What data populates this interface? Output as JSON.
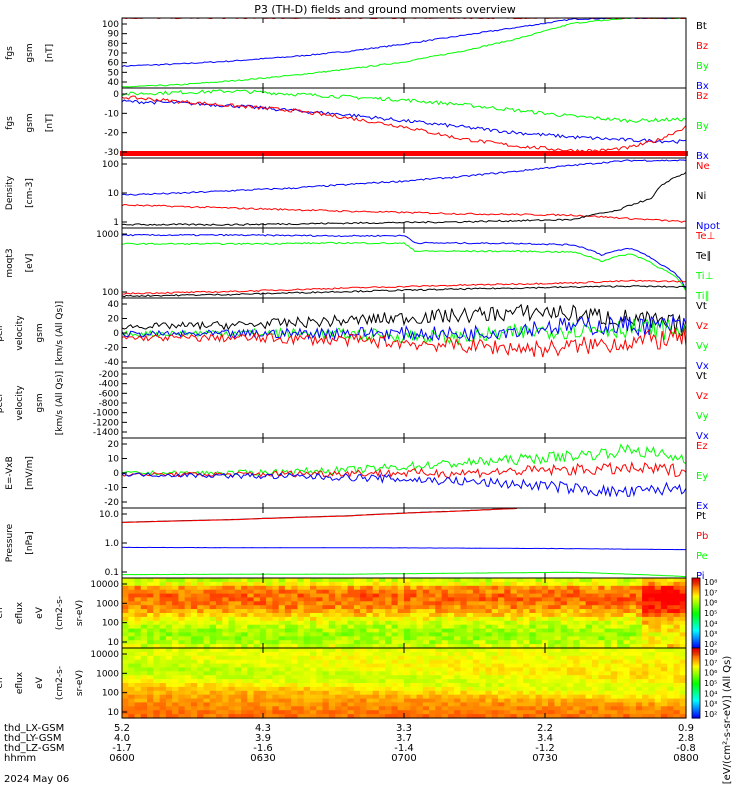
{
  "colors": {
    "black": "#000000",
    "red": "#ff0000",
    "green": "#00ff00",
    "blue": "#0000ff"
  },
  "chart_data": {
    "type": "line",
    "title": "P3 (TH-D) fields and ground moments overview",
    "x_ticks": [
      "0600",
      "0630",
      "0700",
      "0730",
      "0800"
    ],
    "x_range": [
      "0600",
      "0800"
    ],
    "ephemeris": [
      {
        "label": "thd_LX-GSM",
        "values": [
          "5.2",
          "4.3",
          "3.3",
          "2.2",
          "0.9"
        ]
      },
      {
        "label": "thd_LY-GSM",
        "values": [
          "4.0",
          "3.9",
          "3.7",
          "3.4",
          "2.8"
        ]
      },
      {
        "label": "thd_LZ-GSM",
        "values": [
          "-1.7",
          "-1.6",
          "-1.4",
          "-1.2",
          "-0.8"
        ]
      },
      {
        "label": "hhmm",
        "values": [
          "0600",
          "0630",
          "0700",
          "0730",
          "0800"
        ]
      }
    ],
    "date_label": "2024 May 06",
    "panels": [
      {
        "ylabel": [
          "thd",
          "fgs",
          "gsm",
          "[nT]"
        ],
        "yticks": [
          "100",
          "90",
          "80",
          "70",
          "60",
          "50",
          "40"
        ],
        "legend": [
          {
            "name": "Bt",
            "color": "black"
          },
          {
            "name": "Bz",
            "color": "red"
          },
          {
            "name": "By",
            "color": "green"
          },
          {
            "name": "Bx",
            "color": "blue"
          }
        ],
        "series": [
          {
            "name": "Bx",
            "color": "blue",
            "x": [
              0,
              0.1,
              0.2,
              0.3,
              0.4,
              0.5,
              0.6,
              0.7,
              0.8,
              0.9,
              1.0
            ],
            "y": [
              54,
              56,
              59,
              63,
              68,
              75,
              83,
              91,
              99,
              100,
              100
            ]
          },
          {
            "name": "By",
            "color": "green",
            "x": [
              0,
              0.1,
              0.2,
              0.3,
              0.4,
              0.5,
              0.6,
              0.7,
              0.8,
              0.9,
              1.0
            ],
            "y": [
              34,
              36,
              40,
              45,
              51,
              58,
              68,
              80,
              95,
              100,
              100
            ]
          },
          {
            "name": "Bz",
            "color": "red",
            "x": [
              0,
              0.05,
              1.0
            ],
            "y": [
              100,
              100,
              100
            ]
          }
        ]
      },
      {
        "ylabel": [
          "thd",
          "fgs",
          "gsm",
          "[nT]"
        ],
        "yticks": [
          "0",
          "-10",
          "-20",
          "-30"
        ],
        "legend": [
          {
            "name": "Bz",
            "color": "red"
          },
          {
            "name": "By",
            "color": "green"
          },
          {
            "name": "Bx",
            "color": "blue"
          }
        ],
        "series": [
          {
            "name": "By",
            "color": "green",
            "x": [
              0,
              0.1,
              0.2,
              0.3,
              0.4,
              0.5,
              0.6,
              0.7,
              0.8,
              0.9,
              1.0
            ],
            "y": [
              8,
              9,
              10,
              8,
              6,
              4,
              1,
              -3,
              -7,
              -10,
              -9
            ]
          },
          {
            "name": "Bx",
            "color": "blue",
            "x": [
              0,
              0.1,
              0.2,
              0.3,
              0.4,
              0.5,
              0.6,
              0.7,
              0.8,
              0.9,
              1.0
            ],
            "y": [
              3,
              2,
              0,
              -3,
              -6,
              -10,
              -14,
              -18,
              -21,
              -23,
              -24
            ]
          },
          {
            "name": "Bz",
            "color": "red",
            "x": [
              0,
              0.1,
              0.2,
              0.3,
              0.4,
              0.5,
              0.6,
              0.7,
              0.8,
              0.85,
              0.9,
              0.95,
              1.0
            ],
            "y": [
              6,
              3,
              0,
              -3,
              -8,
              -14,
              -22,
              -27,
              -30,
              -30,
              -28,
              -23,
              -14
            ]
          }
        ]
      },
      {
        "ylabel": [
          "Density",
          "[cm-3]"
        ],
        "yticks": [
          "100",
          "10",
          "1"
        ],
        "legend": [
          {
            "name": "Ne",
            "color": "red"
          },
          {
            "name": "Ni",
            "color": "black"
          },
          {
            "name": "Npot",
            "color": "blue"
          }
        ],
        "series": [
          {
            "name": "Npot",
            "color": "blue",
            "x": [
              0,
              0.1,
              0.2,
              0.3,
              0.4,
              0.5,
              0.6,
              0.7,
              0.8,
              0.9,
              1.0
            ],
            "y": [
              8,
              9,
              11,
              13,
              17,
              22,
              30,
              45,
              70,
              100,
              100
            ]
          },
          {
            "name": "Ne",
            "color": "red",
            "x": [
              0,
              0.2,
              0.4,
              0.6,
              0.8,
              0.9,
              1.0
            ],
            "y": [
              3.8,
              3,
              2.4,
              2,
              1.8,
              1.4,
              1.1
            ]
          },
          {
            "name": "Ni",
            "color": "black",
            "x": [
              0,
              0.2,
              0.4,
              0.6,
              0.8,
              0.88,
              0.94,
              1.0
            ],
            "y": [
              0.9,
              0.9,
              1,
              1.1,
              1.3,
              2.5,
              6,
              40
            ]
          }
        ]
      },
      {
        "ylabel": [
          "moqt3",
          "[eV]"
        ],
        "yticks": [
          "1000",
          "100"
        ],
        "legend": [
          {
            "name": "Te⊥",
            "color": "red"
          },
          {
            "name": "Te∥",
            "color": "black"
          },
          {
            "name": "Ti⊥",
            "color": "green"
          },
          {
            "name": "Ti∥",
            "color": "green"
          }
        ],
        "series": [
          {
            "name": "Ti⊥",
            "color": "blue",
            "x": [
              0,
              0.2,
              0.4,
              0.5,
              0.52,
              0.7,
              0.8,
              0.85,
              0.9,
              0.95,
              1.0
            ],
            "y": [
              5500,
              5500,
              5200,
              5300,
              3200,
              3100,
              2800,
              1400,
              2200,
              800,
              120
            ]
          },
          {
            "name": "Ti∥",
            "color": "green",
            "x": [
              0,
              0.2,
              0.4,
              0.5,
              0.52,
              0.7,
              0.8,
              0.85,
              0.9,
              0.95,
              1.0
            ],
            "y": [
              3000,
              3000,
              3200,
              3100,
              1800,
              1800,
              1700,
              900,
              1500,
              600,
              110
            ]
          },
          {
            "name": "Te⊥",
            "color": "red",
            "x": [
              0,
              0.2,
              0.4,
              0.6,
              0.8,
              0.9,
              1.0
            ],
            "y": [
              95,
              110,
              140,
              170,
              200,
              230,
              220
            ]
          },
          {
            "name": "Te∥",
            "color": "black",
            "x": [
              0,
              0.2,
              0.4,
              0.6,
              0.8,
              0.9,
              1.0
            ],
            "y": [
              80,
              90,
              110,
              130,
              150,
              160,
              150
            ]
          }
        ]
      },
      {
        "ylabel": [
          "thd",
          "peir",
          "velocity",
          "gsm",
          "[km/s (All Qs)]"
        ],
        "yticks": [
          "40",
          "20",
          "0",
          "-20",
          "-40"
        ],
        "legend": [
          {
            "name": "Vt",
            "color": "black"
          },
          {
            "name": "Vz",
            "color": "red"
          },
          {
            "name": "Vy",
            "color": "green"
          },
          {
            "name": "Vx",
            "color": "blue"
          }
        ],
        "series": [
          {
            "name": "Vt",
            "color": "black",
            "x": [
              0,
              0.2,
              0.4,
              0.6,
              0.75,
              0.9,
              1.0
            ],
            "y": [
              10,
              12,
              18,
              25,
              30,
              20,
              10
            ]
          },
          {
            "name": "Vy",
            "color": "green",
            "x": [
              0,
              0.2,
              0.4,
              0.6,
              0.75,
              0.9,
              1.0
            ],
            "y": [
              0,
              2,
              0,
              -5,
              5,
              8,
              5
            ]
          },
          {
            "name": "Vx",
            "color": "blue",
            "x": [
              0,
              0.2,
              0.4,
              0.6,
              0.75,
              0.9,
              1.0
            ],
            "y": [
              0,
              0,
              2,
              0,
              10,
              12,
              10
            ]
          },
          {
            "name": "Vz",
            "color": "red",
            "x": [
              0,
              0.2,
              0.4,
              0.6,
              0.75,
              0.9,
              1.0
            ],
            "y": [
              -5,
              -5,
              -8,
              -15,
              -20,
              -10,
              -5
            ]
          }
        ]
      },
      {
        "ylabel": [
          "thd",
          "peer",
          "velocity",
          "gsm",
          "[km/s (All Qs)]"
        ],
        "yticks": [
          "-200",
          "-400",
          "-600",
          "-800",
          "-1000",
          "-1200",
          "-1400"
        ],
        "legend": [
          {
            "name": "Vt",
            "color": "black"
          },
          {
            "name": "Vz",
            "color": "red"
          },
          {
            "name": "Vy",
            "color": "green"
          },
          {
            "name": "Vx",
            "color": "blue"
          }
        ],
        "series": []
      },
      {
        "ylabel": [
          "E=-VxB",
          "[mV/m]"
        ],
        "yticks": [
          "20",
          "10",
          "0",
          "-10",
          "-20"
        ],
        "legend": [
          {
            "name": "Ez",
            "color": "red"
          },
          {
            "name": "Ey",
            "color": "green"
          },
          {
            "name": "Ex",
            "color": "blue"
          }
        ],
        "series": [
          {
            "name": "Ey",
            "color": "green",
            "x": [
              0,
              0.2,
              0.4,
              0.6,
              0.75,
              0.85,
              0.9,
              1.0
            ],
            "y": [
              1,
              1,
              3,
              8,
              12,
              15,
              18,
              11
            ]
          },
          {
            "name": "Ez",
            "color": "red",
            "x": [
              0,
              0.2,
              0.4,
              0.6,
              0.75,
              0.9,
              1.0
            ],
            "y": [
              0,
              0,
              1,
              1,
              3,
              4,
              3
            ]
          },
          {
            "name": "Ex",
            "color": "blue",
            "x": [
              0,
              0.2,
              0.4,
              0.6,
              0.75,
              0.85,
              0.9,
              1.0
            ],
            "y": [
              0,
              -1,
              -2,
              -5,
              -8,
              -12,
              -13,
              -9
            ]
          }
        ]
      },
      {
        "ylabel": [
          "Pressure",
          "[nPa]"
        ],
        "yticks": [
          "10.0",
          "1.0",
          "0.1"
        ],
        "legend": [
          {
            "name": "Pt",
            "color": "black"
          },
          {
            "name": "Pb",
            "color": "red"
          },
          {
            "name": "Pe",
            "color": "green"
          },
          {
            "name": "Pi",
            "color": "blue"
          }
        ],
        "series": [
          {
            "name": "Pt",
            "color": "black",
            "x": [
              0,
              0.2,
              0.4,
              0.6,
              0.7
            ],
            "y": [
              6.5,
              8.5,
              12,
              19,
              24
            ]
          },
          {
            "name": "Pb",
            "color": "red",
            "x": [
              0,
              0.2,
              0.4,
              0.6,
              0.7
            ],
            "y": [
              6.4,
              8.4,
              11.8,
              18.8,
              23.8
            ]
          },
          {
            "name": "Pi",
            "color": "blue",
            "x": [
              0,
              0.2,
              0.4,
              0.6,
              0.8,
              1.0
            ],
            "y": [
              0.62,
              0.6,
              0.6,
              0.58,
              0.55,
              0.5
            ]
          },
          {
            "name": "Pe",
            "color": "green",
            "x": [
              0,
              0.2,
              0.4,
              0.6,
              0.8,
              1.0
            ],
            "y": [
              0.048,
              0.05,
              0.05,
              0.055,
              0.06,
              0.04
            ]
          }
        ]
      },
      {
        "ylabel": [
          "thd",
          "peir",
          "en",
          "eflux",
          "eV",
          "(cm2-s-",
          "sr-eV)"
        ],
        "yticks": [
          "10000",
          "1000",
          "100",
          "10"
        ],
        "type": "heatmap"
      },
      {
        "ylabel": [
          "thd",
          "peer",
          "en",
          "eflux",
          "eV",
          "(cm2-s-",
          "sr-eV)"
        ],
        "yticks": [
          "10000",
          "1000",
          "100",
          "10"
        ],
        "type": "heatmap"
      }
    ],
    "colorbar_ticks": [
      "10⁸",
      "10⁷",
      "10⁶",
      "10⁵",
      "10⁴",
      "10³",
      "10²"
    ],
    "colorbar_label": "[eV/(cm²-s-sr-eV)] (All Qs)"
  }
}
